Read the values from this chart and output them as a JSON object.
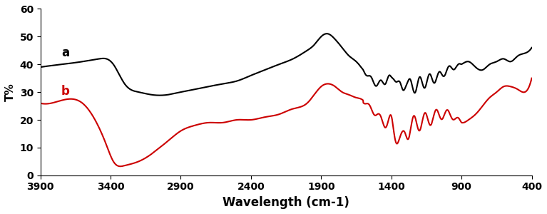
{
  "title": "",
  "xlabel": "Wavelength (cm-1)",
  "ylabel": "T%",
  "xlim": [
    400,
    3900
  ],
  "ylim": [
    0,
    60
  ],
  "xticks": [
    3900,
    3400,
    2900,
    2400,
    1900,
    1400,
    900,
    400
  ],
  "yticks": [
    0,
    10,
    20,
    30,
    40,
    50,
    60
  ],
  "color_a": "#000000",
  "color_b": "#cc0000",
  "label_a": "a",
  "label_b": "b",
  "curve_a_x": [
    3900,
    3750,
    3600,
    3480,
    3430,
    3380,
    3300,
    3200,
    3100,
    3000,
    2900,
    2800,
    2700,
    2600,
    2500,
    2400,
    2300,
    2200,
    2100,
    2000,
    1950,
    1900,
    1850,
    1800,
    1750,
    1700,
    1650,
    1600,
    1550,
    1500,
    1450,
    1420,
    1400,
    1380,
    1350,
    1320,
    1300,
    1280,
    1250,
    1200,
    1150,
    1100,
    1050,
    1000,
    950,
    900,
    850,
    800,
    750,
    700,
    650,
    600,
    550,
    500,
    450,
    400
  ],
  "curve_a_y": [
    39,
    40,
    41,
    42,
    42,
    40,
    33,
    30,
    29,
    29,
    30,
    31,
    32,
    33,
    34,
    36,
    38,
    40,
    42,
    45,
    47,
    50,
    51,
    49,
    46,
    43,
    41,
    38,
    35,
    33,
    34,
    35,
    34,
    36,
    33,
    31,
    34,
    33,
    32,
    33,
    34,
    35,
    36,
    38,
    39,
    40,
    41,
    39,
    38,
    40,
    41,
    42,
    41,
    43,
    44,
    46
  ],
  "curve_b_x": [
    3900,
    3750,
    3600,
    3500,
    3430,
    3380,
    3300,
    3200,
    3100,
    3050,
    3000,
    2900,
    2800,
    2700,
    2600,
    2500,
    2400,
    2300,
    2200,
    2100,
    2000,
    1950,
    1900,
    1850,
    1800,
    1750,
    1700,
    1650,
    1600,
    1550,
    1500,
    1480,
    1450,
    1420,
    1400,
    1380,
    1350,
    1320,
    1300,
    1280,
    1250,
    1200,
    1150,
    1100,
    1050,
    1000,
    950,
    900,
    850,
    800,
    750,
    700,
    650,
    600,
    550,
    500,
    450,
    400
  ],
  "curve_b_y": [
    26,
    27,
    26,
    19,
    11,
    5,
    3.5,
    5,
    8,
    10,
    12,
    16,
    18,
    19,
    19,
    20,
    20,
    21,
    22,
    24,
    26,
    29,
    32,
    33,
    32,
    30,
    29,
    28,
    27,
    24,
    22,
    20,
    19,
    20,
    19,
    15,
    14,
    13,
    15,
    16,
    18,
    19,
    20,
    21,
    22,
    22,
    21,
    19,
    20,
    22,
    25,
    28,
    30,
    32,
    32,
    31,
    30,
    35
  ]
}
